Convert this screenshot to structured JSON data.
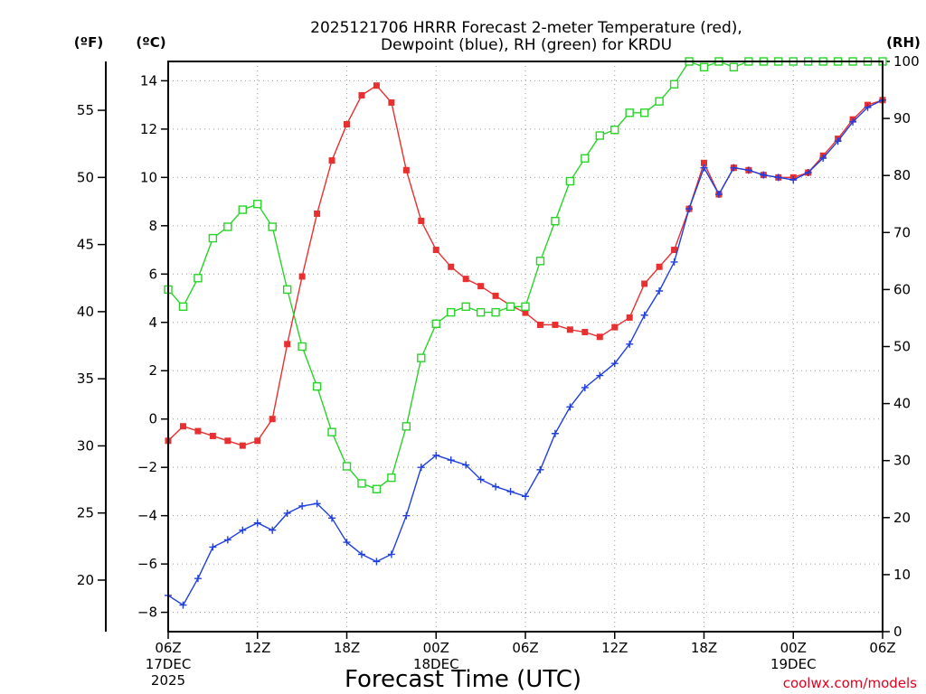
{
  "chart_data": {
    "type": "line",
    "title_lines": [
      "2025121706 HRRR Forecast 2-meter Temperature (red),",
      "Dewpoint (blue), RH (green) for KRDU"
    ],
    "axis_units": {
      "fahrenheit": "(ºF)",
      "celsius": "(ºC)",
      "rh": "(RH)"
    },
    "xlabel": "Forecast Time (UTC)",
    "credit": "coolwx.com/models",
    "x_ticks": [
      {
        "h": 0,
        "lines": [
          "06Z",
          "17DEC",
          "2025"
        ]
      },
      {
        "h": 6,
        "lines": [
          "12Z"
        ]
      },
      {
        "h": 12,
        "lines": [
          "18Z"
        ]
      },
      {
        "h": 18,
        "lines": [
          "00Z",
          "18DEC"
        ]
      },
      {
        "h": 24,
        "lines": [
          "06Z"
        ]
      },
      {
        "h": 30,
        "lines": [
          "12Z"
        ]
      },
      {
        "h": 36,
        "lines": [
          "18Z"
        ]
      },
      {
        "h": 42,
        "lines": [
          "00Z",
          "19DEC"
        ]
      },
      {
        "h": 48,
        "lines": [
          "06Z"
        ]
      }
    ],
    "xlim": [
      0,
      48
    ],
    "celsius_ylim": [
      -8.8,
      14.8
    ],
    "celsius_ticks": [
      -8,
      -6,
      -4,
      -2,
      0,
      2,
      4,
      6,
      8,
      10,
      12,
      14
    ],
    "fahrenheit_ticks": [
      20,
      25,
      30,
      35,
      40,
      45,
      50,
      55
    ],
    "rh_ylim": [
      0,
      100
    ],
    "rh_ticks": [
      0,
      10,
      20,
      30,
      40,
      50,
      60,
      70,
      80,
      90,
      100
    ],
    "grid": true,
    "series": [
      {
        "name": "Temperature",
        "unit": "C",
        "color": "#e83030",
        "marker": "filled-square",
        "values": [
          -0.9,
          -0.3,
          -0.5,
          -0.7,
          -0.9,
          -1.1,
          -0.9,
          0.0,
          3.1,
          5.9,
          8.5,
          10.7,
          12.2,
          13.4,
          13.8,
          13.1,
          10.3,
          8.2,
          7.0,
          6.3,
          5.8,
          5.5,
          5.1,
          4.7,
          4.4,
          3.9,
          3.9,
          3.7,
          3.6,
          3.4,
          3.8,
          4.2,
          5.6,
          6.3,
          7.0,
          8.7,
          10.6,
          9.3,
          10.4,
          10.3,
          10.1,
          10.0,
          10.0,
          10.2,
          10.9,
          11.6,
          12.4,
          13.0,
          13.2
        ]
      },
      {
        "name": "Dewpoint",
        "unit": "C",
        "color": "#1f3fe0",
        "marker": "plus",
        "values": [
          -7.3,
          -7.7,
          -6.6,
          -5.3,
          -5.0,
          -4.6,
          -4.3,
          -4.6,
          -3.9,
          -3.6,
          -3.5,
          -4.1,
          -5.1,
          -5.6,
          -5.9,
          -5.6,
          -4.0,
          -2.0,
          -1.5,
          -1.7,
          -1.9,
          -2.5,
          -2.8,
          -3.0,
          -3.2,
          -2.1,
          -0.6,
          0.5,
          1.3,
          1.8,
          2.3,
          3.1,
          4.3,
          5.3,
          6.5,
          8.7,
          10.4,
          9.3,
          10.4,
          10.3,
          10.1,
          10.0,
          9.9,
          10.2,
          10.8,
          11.5,
          12.3,
          12.9,
          13.2
        ]
      },
      {
        "name": "RH",
        "unit": "%",
        "color": "#28d428",
        "marker": "open-square",
        "values": [
          60,
          57,
          62,
          69,
          71,
          74,
          75,
          71,
          60,
          50,
          43,
          35,
          29,
          26,
          25,
          27,
          36,
          48,
          54,
          56,
          57,
          56,
          56,
          57,
          57,
          65,
          72,
          79,
          83,
          87,
          88,
          91,
          91,
          93,
          96,
          100,
          99,
          100,
          99,
          100,
          100,
          100,
          100,
          100,
          100,
          100,
          100,
          100,
          100
        ]
      }
    ]
  }
}
